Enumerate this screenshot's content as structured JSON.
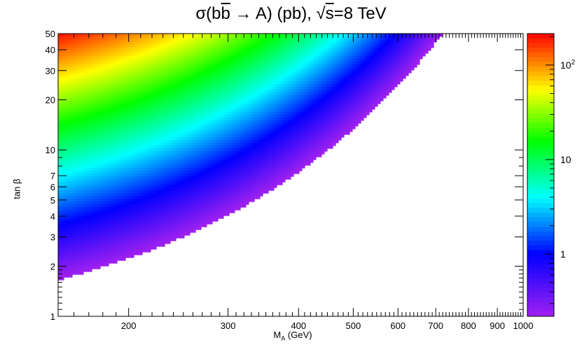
{
  "page": {
    "title_html": "σ(b<span style=\"text-decoration:overline\">b</span> → A) (pb), √<span style=\"text-decoration:overline\">s</span>=8 TeV"
  },
  "chart_data": {
    "type": "heatmap",
    "title": "σ(bb̄ → A) (pb), √s=8 TeV",
    "xlabel_main": "M",
    "xlabel_sub": "A",
    "xlabel_unit": "(GeV)",
    "ylabel": "tan β",
    "xscale": "log",
    "yscale": "log",
    "zscale": "log",
    "xlim": [
      150,
      1000
    ],
    "ylim": [
      1,
      50
    ],
    "zlim": [
      0.22,
      215
    ],
    "grid": false,
    "x_tick_labels": [
      {
        "v": 200,
        "t": "200"
      },
      {
        "v": 300,
        "t": "300"
      },
      {
        "v": 400,
        "t": "400"
      },
      {
        "v": 500,
        "t": "500"
      },
      {
        "v": 600,
        "t": "600"
      },
      {
        "v": 700,
        "t": "700"
      },
      {
        "v": 800,
        "t": "800"
      },
      {
        "v": 900,
        "t": "900"
      },
      {
        "v": 1000,
        "t": "1000"
      }
    ],
    "y_tick_labels": [
      {
        "v": 1,
        "t": "1"
      },
      {
        "v": 2,
        "t": "2"
      },
      {
        "v": 3,
        "t": "3"
      },
      {
        "v": 4,
        "t": "4"
      },
      {
        "v": 5,
        "t": "5"
      },
      {
        "v": 6,
        "t": "6"
      },
      {
        "v": 7,
        "t": "7"
      },
      {
        "v": 10,
        "t": "10"
      },
      {
        "v": 20,
        "t": "20"
      },
      {
        "v": 30,
        "t": "30"
      },
      {
        "v": 40,
        "t": "40"
      },
      {
        "v": 50,
        "t": "50"
      }
    ],
    "colorbar_ticks": [
      {
        "v": 1,
        "t": "1"
      },
      {
        "v": 10,
        "t": "10"
      },
      {
        "v": 100,
        "t": "10",
        "exp": "2"
      }
    ],
    "palette": [
      "#a020f0",
      "#0000ff",
      "#00ffff",
      "#00ff00",
      "#ffff00",
      "#ff0000"
    ],
    "sample_values": [
      {
        "mA": 150,
        "tanb": 50,
        "sigma": 200
      },
      {
        "mA": 150,
        "tanb": 20,
        "sigma": 32
      },
      {
        "mA": 150,
        "tanb": 10,
        "sigma": 8
      },
      {
        "mA": 150,
        "tanb": 5,
        "sigma": 2
      },
      {
        "mA": 150,
        "tanb": 2,
        "sigma": 0.3
      },
      {
        "mA": 300,
        "tanb": 50,
        "sigma": 18
      },
      {
        "mA": 300,
        "tanb": 10,
        "sigma": 0.7
      },
      {
        "mA": 500,
        "tanb": 50,
        "sigma": 2.5
      },
      {
        "mA": 720,
        "tanb": 50,
        "sigma": 0.22
      }
    ]
  }
}
